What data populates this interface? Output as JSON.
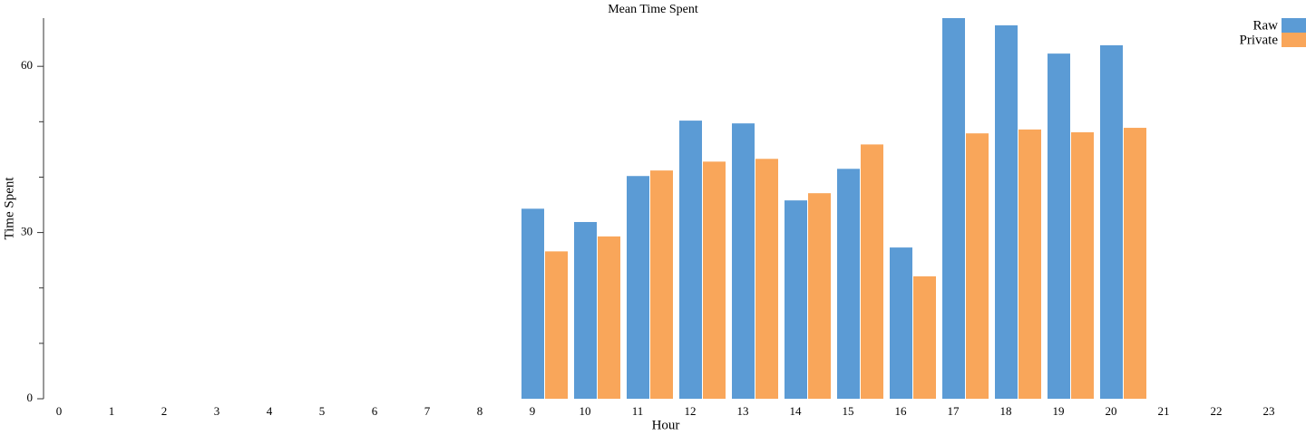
{
  "chart_data": {
    "type": "bar",
    "title": "Mean Time Spent",
    "x_label": "Hour",
    "y_label": "Time Spent",
    "categories": [
      "0",
      "1",
      "2",
      "3",
      "4",
      "5",
      "6",
      "7",
      "8",
      "9",
      "10",
      "11",
      "12",
      "13",
      "14",
      "15",
      "16",
      "17",
      "18",
      "19",
      "20",
      "21",
      "22",
      "23"
    ],
    "series": [
      {
        "name": "Raw",
        "color": "#5b9bd5",
        "values": [
          null,
          null,
          null,
          null,
          null,
          null,
          null,
          null,
          null,
          34.3,
          31.9,
          40.2,
          50.2,
          49.7,
          35.8,
          41.5,
          27.3,
          68.7,
          67.4,
          62.3,
          63.8,
          null,
          null,
          null
        ]
      },
      {
        "name": "Private",
        "color": "#f9a65a",
        "values": [
          null,
          null,
          null,
          null,
          null,
          null,
          null,
          null,
          null,
          26.6,
          29.3,
          41.2,
          42.8,
          43.3,
          37.1,
          45.9,
          22.1,
          47.9,
          48.6,
          48.1,
          48.9,
          null,
          null,
          null
        ]
      }
    ],
    "ylim": [
      0,
      68.7
    ],
    "yticks": [
      0,
      30,
      60
    ],
    "yticks_minor": [
      10,
      20,
      40,
      50
    ],
    "legend": "top-right"
  }
}
